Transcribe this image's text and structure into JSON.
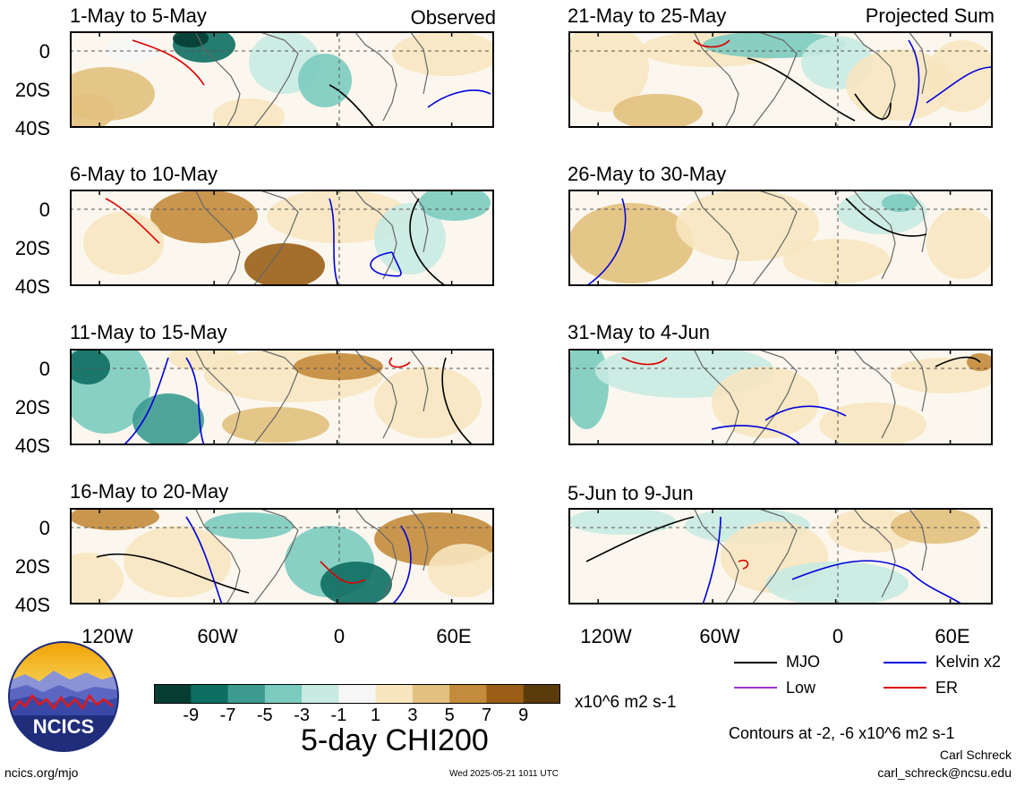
{
  "panels": [
    {
      "id": "p1",
      "title": "1-May to 5-May",
      "tag": "Observed"
    },
    {
      "id": "p2",
      "title": "6-May to 10-May",
      "tag": ""
    },
    {
      "id": "p3",
      "title": "11-May to 15-May",
      "tag": ""
    },
    {
      "id": "p4",
      "title": "16-May to 20-May",
      "tag": ""
    },
    {
      "id": "p5",
      "title": "21-May to 25-May",
      "tag": "Projected Sum"
    },
    {
      "id": "p6",
      "title": "26-May to 30-May",
      "tag": ""
    },
    {
      "id": "p7",
      "title": "31-May to 4-Jun",
      "tag": ""
    },
    {
      "id": "p8",
      "title": "5-Jun to 9-Jun",
      "tag": ""
    }
  ],
  "y_ticks": [
    "0",
    "20S",
    "40S"
  ],
  "x_ticks": [
    "120W",
    "60W",
    "0",
    "60E"
  ],
  "colorbar": {
    "colors": [
      "#053d33",
      "#0d6e62",
      "#3c9a90",
      "#7ccbbf",
      "#c8eae2",
      "#f6f6f6",
      "#f7e6c0",
      "#e2c07d",
      "#c38b3c",
      "#9a5e16",
      "#5b3b0c"
    ],
    "ticks": [
      "-9",
      "-7",
      "-5",
      "-3",
      "-1",
      "1",
      "3",
      "5",
      "7",
      "9"
    ],
    "units": "x10^6 m2 s-1",
    "title": "5-day CHI200"
  },
  "legend": {
    "items": [
      {
        "label": "MJO",
        "color": "#000000"
      },
      {
        "label": "Kelvin x2",
        "color": "#0000dd"
      },
      {
        "label": "Low",
        "color": "#9933cc"
      },
      {
        "label": "ER",
        "color": "#dd0000"
      }
    ],
    "contour_note": "Contours at -2, -6 x10^6 m2 s-1"
  },
  "logo": {
    "text": "NCICS"
  },
  "footer": {
    "url": "ncics.org/mjo",
    "timestamp": "Wed 2025-05-21 1011 UTC",
    "author": "Carl Schreck",
    "email": "carl_schreck@ncsu.edu"
  }
}
